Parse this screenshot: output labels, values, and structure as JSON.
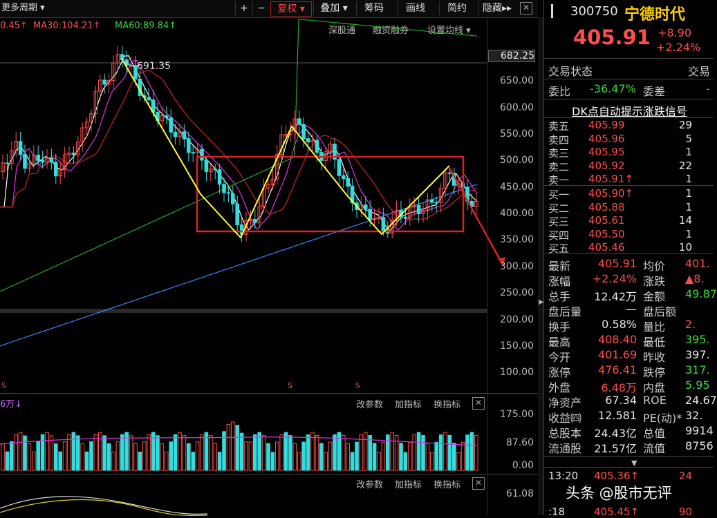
{
  "toolbar": {
    "period": "更多周期",
    "plus": "+",
    "minus": "−",
    "fuquan": "复权",
    "diejia": "叠加",
    "chouma": "筹码",
    "huaxian": "画线",
    "jianjie": "简约",
    "yincang": "隐藏"
  },
  "ma_legend": {
    "ma_first": "0.45",
    "ma30": "MA30:104.21",
    "ma60": "MA60:89.84"
  },
  "top_links": {
    "shengutong": "深股通",
    "rongzi": "融资融券",
    "shezhi": "设置均线"
  },
  "price_axis": [
    "682.25",
    "650.00",
    "600.00",
    "550.00",
    "500.00",
    "450.00",
    "400.00",
    "350.00",
    "300.00",
    "250.00",
    "200.00",
    "150.00",
    "100.00"
  ],
  "price_annotation": "691.35",
  "volume": {
    "label": "6万",
    "tools": [
      "改参数",
      "加指标",
      "换指标"
    ],
    "axis": [
      "175.00",
      "87.60",
      "0.00"
    ]
  },
  "indicator": {
    "tools": [
      "改参数",
      "加指标",
      "换指标"
    ],
    "axis": [
      "61.08"
    ]
  },
  "stock": {
    "code": "300750",
    "name": "宁德时代",
    "price": "405.91",
    "change": "+8.90",
    "change_pct": "+2.24%"
  },
  "status": {
    "jiaoyi_label": "交易状态",
    "jiaoyi_right": "交易",
    "weibi_label": "委比",
    "weibi_value": "-36.47%",
    "weicha_label": "委差",
    "weicha_value": "-"
  },
  "dk_banner": "DK点自动提示涨跌信号",
  "asks": [
    {
      "label": "卖五",
      "price": "405.99",
      "vol": "29"
    },
    {
      "label": "卖四",
      "price": "405.96",
      "vol": "5"
    },
    {
      "label": "卖三",
      "price": "405.95",
      "vol": "1"
    },
    {
      "label": "卖二",
      "price": "405.92",
      "vol": "22"
    },
    {
      "label": "卖一",
      "price": "405.91↑",
      "vol": "1"
    }
  ],
  "bids": [
    {
      "label": "买一",
      "price": "405.90↑",
      "vol": "1"
    },
    {
      "label": "买二",
      "price": "405.88",
      "vol": "1"
    },
    {
      "label": "买三",
      "price": "405.61",
      "vol": "14"
    },
    {
      "label": "买四",
      "price": "405.50",
      "vol": "1"
    },
    {
      "label": "买五",
      "price": "405.46",
      "vol": "10"
    }
  ],
  "stats": [
    {
      "l1": "最新",
      "v1": "405.91",
      "c1": "red",
      "l2": "均价",
      "v2": "401.",
      "c2": "red"
    },
    {
      "l1": "涨幅",
      "v1": "+2.24%",
      "c1": "red",
      "l2": "涨跌",
      "v2": "▲8.",
      "c2": "red"
    },
    {
      "l1": "总手",
      "v1": "12.42万",
      "c1": "white",
      "l2": "金额",
      "v2": "49.87",
      "c2": "green"
    },
    {
      "l1": "盘后量",
      "v1": "—",
      "c1": "white",
      "l2": "盘后额",
      "v2": "",
      "c2": "white"
    },
    {
      "l1": "换手",
      "v1": "0.58%",
      "c1": "white",
      "l2": "量比",
      "v2": "2.",
      "c2": "red"
    },
    {
      "l1": "最高",
      "v1": "408.40",
      "c1": "red",
      "l2": "最低",
      "v2": "395.",
      "c2": "green"
    },
    {
      "l1": "今开",
      "v1": "401.69",
      "c1": "red",
      "l2": "昨收",
      "v2": "397.",
      "c2": "white"
    },
    {
      "l1": "涨停",
      "v1": "476.41",
      "c1": "red",
      "l2": "跌停",
      "v2": "317.",
      "c2": "green"
    },
    {
      "l1": "外盘",
      "v1": "6.48万",
      "c1": "red",
      "l2": "内盘",
      "v2": "5.95",
      "c2": "green"
    },
    {
      "l1": "净资产",
      "v1": "67.34",
      "c1": "white",
      "l2": "ROE",
      "v2": "24.67",
      "c2": "white"
    },
    {
      "l1": "收益㈣",
      "v1": "12.581",
      "c1": "white",
      "l2": "PE(动)*",
      "v2": "32.",
      "c2": "white"
    },
    {
      "l1": "总股本",
      "v1": "24.43亿",
      "c1": "white",
      "l2": "总值",
      "v2": "9914",
      "c2": "white"
    },
    {
      "l1": "流通股",
      "v1": "21.57亿",
      "c1": "white",
      "l2": "流值",
      "v2": "8756",
      "c2": "white"
    }
  ],
  "ticks": [
    {
      "time": "13:20",
      "price": "405.36↑",
      "vol": "24"
    },
    {
      "time": ":18",
      "price": "405.45↑",
      "vol": "90"
    }
  ],
  "watermark": "头条 @股市无评",
  "colors": {
    "up": "#ff4c4c",
    "down": "#33dddd",
    "frame": "#dd2222",
    "zigzag": "#ffff33"
  }
}
